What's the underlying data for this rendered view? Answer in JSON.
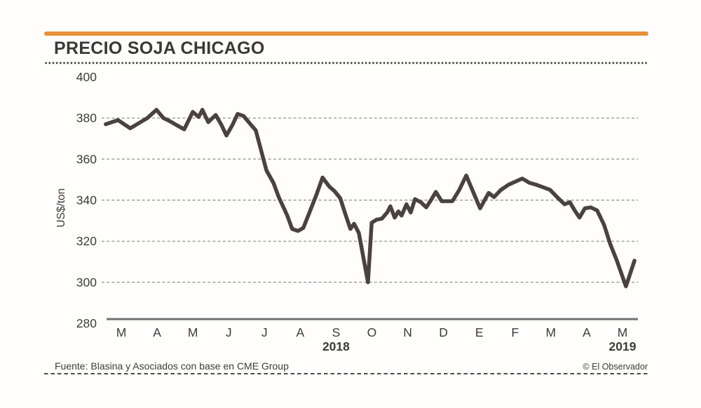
{
  "header": {
    "title": "PRECIO SOJA CHICAGO"
  },
  "footer": {
    "source": "Fuente: Blasina y Asociados con base en CME Group",
    "credit": "© El Observador"
  },
  "colors": {
    "accent": "#E7913A",
    "line": "#4A4140",
    "grid": "#9B9B9B",
    "axis": "#707070",
    "text": "#3B3B3B"
  },
  "chart_data": {
    "type": "line",
    "title": "PRECIO SOJA CHICAGO",
    "ylabel": "US$/ton",
    "ylim": [
      280,
      400
    ],
    "yticks": [
      400,
      380,
      360,
      340,
      320,
      300,
      280
    ],
    "gridlines": [
      380,
      360,
      340,
      320,
      300
    ],
    "grid": "dashed-horizontal",
    "legend": "none",
    "x_months": [
      "M",
      "A",
      "M",
      "J",
      "J",
      "A",
      "S",
      "O",
      "N",
      "D",
      "E",
      "F",
      "M",
      "A",
      "M"
    ],
    "x_years": [
      {
        "label": "2018",
        "month_index": 6
      },
      {
        "label": "2019",
        "month_index": 14
      }
    ],
    "points": [
      [
        0.001,
        377
      ],
      [
        0.024,
        379
      ],
      [
        0.047,
        375
      ],
      [
        0.079,
        380
      ],
      [
        0.096,
        384
      ],
      [
        0.109,
        380
      ],
      [
        0.121,
        378.5
      ],
      [
        0.134,
        376.5
      ],
      [
        0.148,
        374.5
      ],
      [
        0.164,
        383
      ],
      [
        0.175,
        380.5
      ],
      [
        0.182,
        384
      ],
      [
        0.193,
        378
      ],
      [
        0.207,
        381.5
      ],
      [
        0.218,
        376.5
      ],
      [
        0.227,
        371.5
      ],
      [
        0.238,
        376.5
      ],
      [
        0.248,
        382
      ],
      [
        0.259,
        381
      ],
      [
        0.272,
        377
      ],
      [
        0.282,
        374
      ],
      [
        0.302,
        354.5
      ],
      [
        0.315,
        348.5
      ],
      [
        0.325,
        341.5
      ],
      [
        0.341,
        332.5
      ],
      [
        0.35,
        326
      ],
      [
        0.361,
        325
      ],
      [
        0.371,
        326.5
      ],
      [
        0.384,
        335
      ],
      [
        0.396,
        343
      ],
      [
        0.407,
        351
      ],
      [
        0.42,
        346.5
      ],
      [
        0.429,
        344.5
      ],
      [
        0.44,
        341
      ],
      [
        0.45,
        333
      ],
      [
        0.459,
        326
      ],
      [
        0.466,
        328.5
      ],
      [
        0.475,
        324
      ],
      [
        0.492,
        300
      ],
      [
        0.499,
        329
      ],
      [
        0.508,
        330.5
      ],
      [
        0.518,
        331
      ],
      [
        0.528,
        334
      ],
      [
        0.534,
        337
      ],
      [
        0.542,
        331.5
      ],
      [
        0.549,
        334.5
      ],
      [
        0.555,
        332.5
      ],
      [
        0.564,
        338
      ],
      [
        0.572,
        334
      ],
      [
        0.58,
        340.5
      ],
      [
        0.591,
        339
      ],
      [
        0.601,
        336.5
      ],
      [
        0.61,
        340
      ],
      [
        0.619,
        344
      ],
      [
        0.63,
        339.5
      ],
      [
        0.65,
        339.5
      ],
      [
        0.663,
        345
      ],
      [
        0.676,
        352
      ],
      [
        0.689,
        344
      ],
      [
        0.702,
        336
      ],
      [
        0.718,
        343.5
      ],
      [
        0.728,
        341.5
      ],
      [
        0.741,
        345
      ],
      [
        0.755,
        347.5
      ],
      [
        0.772,
        349.5
      ],
      [
        0.781,
        350.5
      ],
      [
        0.794,
        348.5
      ],
      [
        0.807,
        347.5
      ],
      [
        0.823,
        346
      ],
      [
        0.833,
        345
      ],
      [
        0.846,
        341.5
      ],
      [
        0.86,
        338
      ],
      [
        0.87,
        339
      ],
      [
        0.879,
        335
      ],
      [
        0.888,
        331.5
      ],
      [
        0.898,
        336
      ],
      [
        0.909,
        336.5
      ],
      [
        0.921,
        335
      ],
      [
        0.934,
        328
      ],
      [
        0.945,
        319
      ],
      [
        0.958,
        310.5
      ],
      [
        0.975,
        298
      ],
      [
        0.991,
        310.5
      ]
    ]
  }
}
